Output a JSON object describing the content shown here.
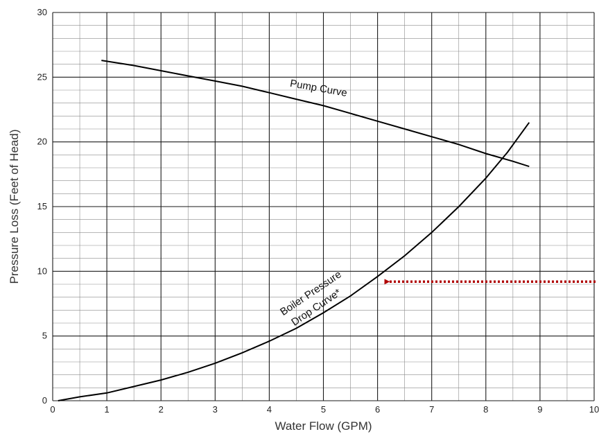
{
  "chart_data": {
    "type": "line",
    "title": "",
    "xlabel": "Water Flow (GPM)",
    "ylabel": "Pressure Loss (Feet of Head)",
    "xlim": [
      0,
      10
    ],
    "ylim": [
      0,
      30
    ],
    "x_ticks": [
      "0",
      "1",
      "2",
      "3",
      "4",
      "5",
      "6",
      "7",
      "8",
      "9",
      "10"
    ],
    "y_ticks": [
      "0",
      "5",
      "10",
      "15",
      "20",
      "25",
      "30"
    ],
    "grid": true,
    "series": [
      {
        "name": "Pump Curve",
        "color": "#000000",
        "x": [
          0.9,
          1.5,
          2,
          2.5,
          3,
          3.5,
          4,
          4.5,
          5,
          5.5,
          6,
          6.5,
          7,
          7.5,
          8,
          8.5,
          8.8
        ],
        "y": [
          26.3,
          25.9,
          25.5,
          25.1,
          24.7,
          24.3,
          23.8,
          23.3,
          22.8,
          22.2,
          21.6,
          21.0,
          20.4,
          19.8,
          19.1,
          18.5,
          18.1
        ]
      },
      {
        "name": "Boiler Pressure Drop Curve*",
        "color": "#000000",
        "x": [
          0.1,
          0.5,
          1,
          1.5,
          2,
          2.5,
          3,
          3.5,
          4,
          4.5,
          5,
          5.5,
          6,
          6.5,
          7,
          7.5,
          8,
          8.4,
          8.8
        ],
        "y": [
          0.0,
          0.3,
          0.6,
          1.1,
          1.6,
          2.2,
          2.9,
          3.7,
          4.6,
          5.6,
          6.8,
          8.1,
          9.6,
          11.2,
          13.0,
          15.0,
          17.2,
          19.2,
          21.5
        ]
      }
    ],
    "annotations": [
      {
        "text": "Pump Curve",
        "x": 4.9,
        "y": 23.9,
        "angle": 10
      },
      {
        "text": "Boiler Pressure",
        "x": 4.8,
        "y": 8.1,
        "angle": -34
      },
      {
        "text": "Drop Curve*",
        "x": 4.9,
        "y": 7.0,
        "angle": -34
      }
    ],
    "arrow": {
      "color": "#b00000",
      "style": "dotted",
      "from": [
        10,
        9.2
      ],
      "to": [
        6.1,
        9.2
      ]
    }
  }
}
